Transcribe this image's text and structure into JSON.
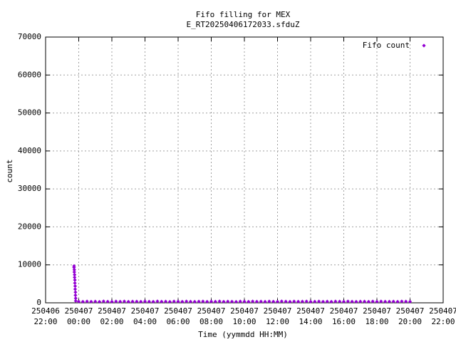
{
  "chart_data": {
    "type": "scatter",
    "title": [
      "Fifo filling for MEX",
      "E_RT20250406172033.sfduZ"
    ],
    "xlabel": "Time (yymmdd HH:MM)",
    "ylabel": "count",
    "xlim": [
      "250406 22:00",
      "250407 22:00"
    ],
    "xticks": [
      "250406 22:00",
      "250407 00:00",
      "250407 02:00",
      "250407 04:00",
      "250407 06:00",
      "250407 08:00",
      "250407 10:00",
      "250407 12:00",
      "250407 14:00",
      "250407 16:00",
      "250407 18:00",
      "250407 20:00",
      "250407 22:00"
    ],
    "ylim": [
      0,
      70000
    ],
    "yticks": [
      0,
      10000,
      20000,
      30000,
      40000,
      50000,
      60000,
      70000
    ],
    "grid": true,
    "legend": "top-right",
    "series": [
      {
        "name": "Fifo count",
        "color": "#9400d3",
        "x": [
          "250406 23:43",
          "250406 23:43",
          "250406 23:44",
          "250406 23:44",
          "250406 23:45",
          "250406 23:45",
          "250406 23:46",
          "250406 23:46",
          "250406 23:47",
          "250406 23:47",
          "250406 23:48",
          "250406 23:48",
          "250406 23:49",
          "250406 23:49",
          "250407 00:00",
          "250407 00:15",
          "250407 00:30",
          "250407 00:45",
          "250407 01:00",
          "250407 01:15",
          "250407 01:30",
          "250407 01:45",
          "250407 02:00",
          "250407 02:15",
          "250407 02:30",
          "250407 02:45",
          "250407 03:00",
          "250407 03:15",
          "250407 03:30",
          "250407 03:45",
          "250407 04:00",
          "250407 04:15",
          "250407 04:30",
          "250407 04:45",
          "250407 05:00",
          "250407 05:15",
          "250407 05:30",
          "250407 05:45",
          "250407 06:00",
          "250407 06:15",
          "250407 06:30",
          "250407 06:45",
          "250407 07:00",
          "250407 07:15",
          "250407 07:30",
          "250407 07:45",
          "250407 08:00",
          "250407 08:15",
          "250407 08:30",
          "250407 08:45",
          "250407 09:00",
          "250407 09:15",
          "250407 09:30",
          "250407 09:45",
          "250407 10:00",
          "250407 10:15",
          "250407 10:30",
          "250407 10:45",
          "250407 11:00",
          "250407 11:15",
          "250407 11:30",
          "250407 11:45",
          "250407 12:00",
          "250407 12:15",
          "250407 12:30",
          "250407 12:45",
          "250407 13:00",
          "250407 13:15",
          "250407 13:30",
          "250407 13:45",
          "250407 14:00",
          "250407 14:15",
          "250407 14:30",
          "250407 14:45",
          "250407 15:00",
          "250407 15:15",
          "250407 15:30",
          "250407 15:45",
          "250407 16:00",
          "250407 16:15",
          "250407 16:30",
          "250407 16:45",
          "250407 17:00",
          "250407 17:15",
          "250407 17:30",
          "250407 17:45",
          "250407 18:00",
          "250407 18:15",
          "250407 18:30",
          "250407 18:45",
          "250407 19:00",
          "250407 19:15",
          "250407 19:30",
          "250407 19:45",
          "250407 20:00"
        ],
        "values": [
          9700,
          9300,
          8700,
          8100,
          7400,
          6700,
          6000,
          5200,
          4400,
          3600,
          2800,
          2000,
          1200,
          500,
          350,
          300,
          380,
          320,
          360,
          290,
          400,
          340,
          310,
          370,
          330,
          390,
          300,
          350,
          360,
          320,
          380,
          340,
          300,
          410,
          330,
          360,
          290,
          370,
          350,
          320,
          390,
          340,
          310,
          360,
          380,
          300,
          350,
          330,
          400,
          320,
          360,
          340,
          290,
          370,
          350,
          310,
          390,
          330,
          360,
          300,
          380,
          340,
          320,
          410,
          350,
          300,
          370,
          330,
          360,
          390,
          310,
          340,
          380,
          320,
          350,
          300,
          370,
          360,
          330,
          390,
          340,
          310,
          360,
          350,
          300,
          380,
          320,
          370,
          340,
          330,
          360,
          300,
          390,
          350,
          320
        ]
      }
    ]
  }
}
